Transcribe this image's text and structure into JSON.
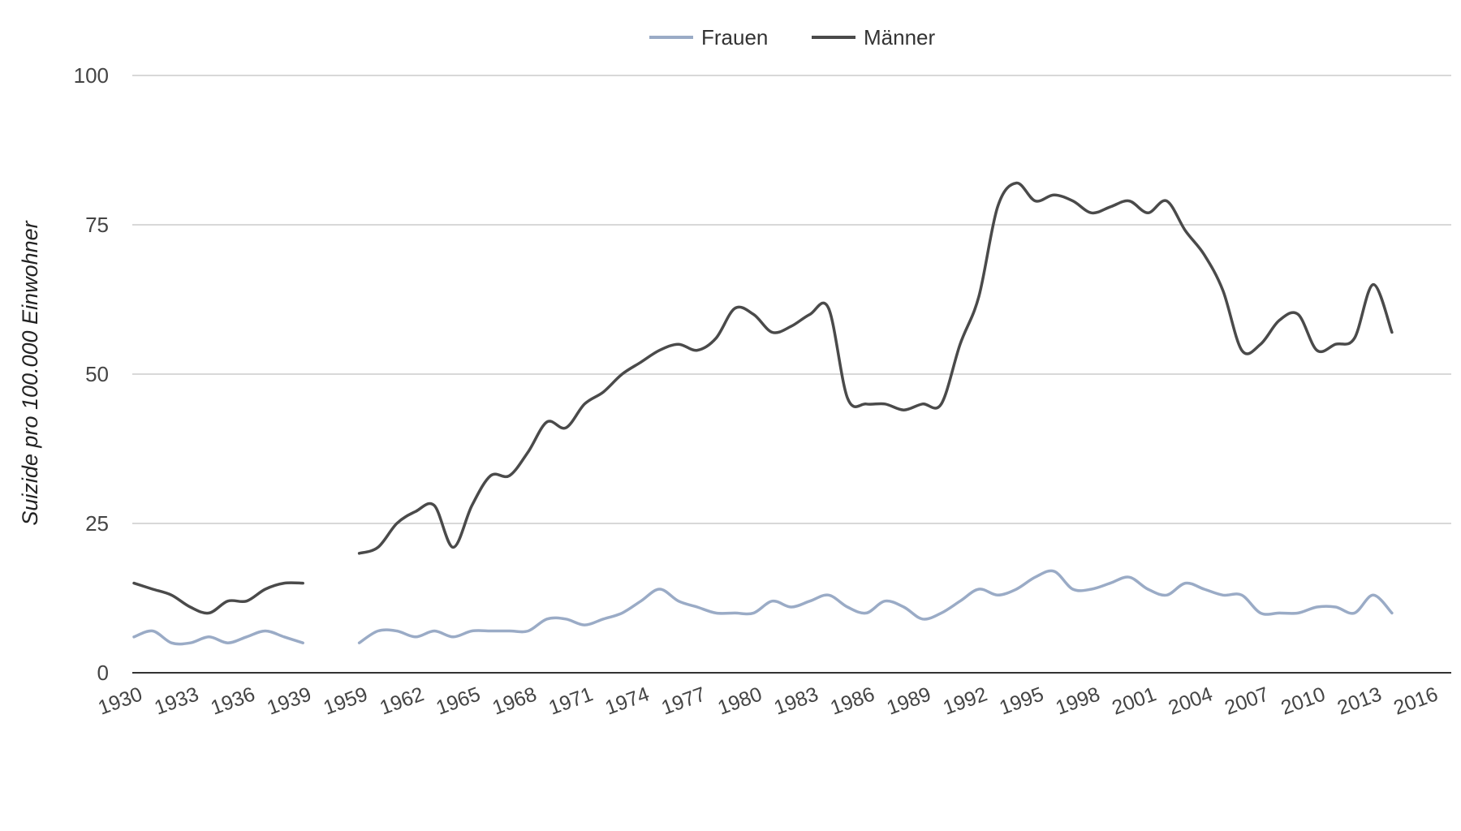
{
  "chart_data": {
    "type": "line",
    "ylabel": "Suizide pro 100.000 Einwohner",
    "ylim": [
      0,
      100
    ],
    "y_ticks": [
      0,
      25,
      50,
      75,
      100
    ],
    "x_tick_labels": [
      "1930",
      "1933",
      "1936",
      "1939",
      "1959",
      "1962",
      "1965",
      "1968",
      "1971",
      "1974",
      "1977",
      "1980",
      "1983",
      "1986",
      "1989",
      "1992",
      "1995",
      "1998",
      "2001",
      "2004",
      "2007",
      "2010",
      "2013",
      "2016"
    ],
    "grid": "horizontal",
    "legend_position": "top-center",
    "series": [
      {
        "name": "Frauen",
        "color": "#9aabc6",
        "segments": [
          {
            "x": [
              1930,
              1931,
              1932,
              1933,
              1934,
              1935,
              1936,
              1937,
              1938,
              1939
            ],
            "y": [
              6,
              7,
              5,
              5,
              6,
              5,
              6,
              7,
              6,
              5
            ]
          },
          {
            "x": [
              1959,
              1960,
              1961,
              1962,
              1963,
              1964,
              1965,
              1966,
              1967,
              1968,
              1969,
              1970,
              1971,
              1972,
              1973,
              1974,
              1975,
              1976,
              1977,
              1978,
              1979,
              1980,
              1981,
              1982,
              1983,
              1984,
              1985,
              1986,
              1987,
              1988,
              1989,
              1990,
              1991,
              1992,
              1993,
              1994,
              1995,
              1996,
              1997,
              1998,
              1999,
              2000,
              2001,
              2002,
              2003,
              2004,
              2005,
              2006,
              2007,
              2008,
              2009,
              2010,
              2011,
              2012,
              2013,
              2014
            ],
            "y": [
              5,
              7,
              7,
              6,
              7,
              6,
              7,
              7,
              7,
              7,
              9,
              9,
              8,
              9,
              10,
              12,
              14,
              12,
              11,
              10,
              10,
              10,
              12,
              11,
              12,
              13,
              11,
              10,
              12,
              11,
              9,
              10,
              12,
              14,
              13,
              14,
              16,
              17,
              14,
              14,
              15,
              16,
              14,
              13,
              15,
              14,
              13,
              13,
              10,
              10,
              10,
              11,
              11,
              10,
              13,
              10
            ]
          }
        ]
      },
      {
        "name": "Männer",
        "color": "#4a4a4a",
        "segments": [
          {
            "x": [
              1930,
              1931,
              1932,
              1933,
              1934,
              1935,
              1936,
              1937,
              1938,
              1939
            ],
            "y": [
              15,
              14,
              13,
              11,
              10,
              12,
              12,
              14,
              15,
              15
            ]
          },
          {
            "x": [
              1959,
              1960,
              1961,
              1962,
              1963,
              1964,
              1965,
              1966,
              1967,
              1968,
              1969,
              1970,
              1971,
              1972,
              1973,
              1974,
              1975,
              1976,
              1977,
              1978,
              1979,
              1980,
              1981,
              1982,
              1983,
              1984,
              1985,
              1986,
              1987,
              1988,
              1989,
              1990,
              1991,
              1992,
              1993,
              1994,
              1995,
              1996,
              1997,
              1998,
              1999,
              2000,
              2001,
              2002,
              2003,
              2004,
              2005,
              2006,
              2007,
              2008,
              2009,
              2010,
              2011,
              2012,
              2013,
              2014
            ],
            "y": [
              20,
              21,
              25,
              27,
              28,
              21,
              28,
              33,
              33,
              37,
              42,
              41,
              45,
              47,
              50,
              52,
              54,
              55,
              54,
              56,
              61,
              60,
              57,
              58,
              60,
              61,
              46,
              45,
              45,
              44,
              45,
              45,
              55,
              63,
              78,
              82,
              79,
              80,
              79,
              77,
              78,
              79,
              77,
              79,
              74,
              70,
              64,
              54,
              55,
              59,
              60,
              54,
              55,
              56,
              65,
              57
            ]
          }
        ]
      }
    ]
  }
}
